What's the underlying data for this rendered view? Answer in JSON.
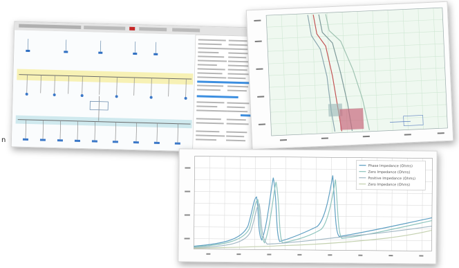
{
  "panels": {
    "oneline": {
      "name": "one-line-diagram-window"
    },
    "tcc": {
      "name": "tcc-plot-window"
    },
    "harmonic": {
      "name": "harmonic-plot-window",
      "legend": [
        "Phase Impedance (Ohms)",
        "Zero Impedance (Ohms)",
        "Positive Impedance (Ohms)",
        "Zero Impedance (Ohms)"
      ]
    }
  },
  "edge_label": "n"
}
